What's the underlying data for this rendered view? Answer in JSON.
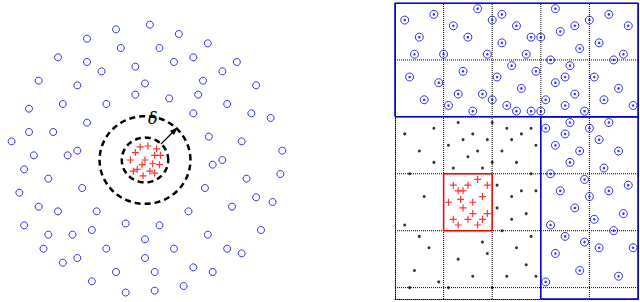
{
  "chart_data": [
    {
      "type": "scatter",
      "tick_labels": false,
      "grid": false,
      "xlim": [
        -1.5,
        1.5
      ],
      "ylim": [
        -1.5,
        1.5
      ],
      "annotations": [
        "δ"
      ],
      "circles": [
        {
          "r": 0.24,
          "color": "#000000",
          "line_style": "dashed"
        },
        {
          "r": 0.47,
          "color": "#000000",
          "line_style": "dashed"
        }
      ],
      "series": [
        {
          "color": "#0000ff",
          "marker": "circle",
          "values": [
            [
              -1.38,
              0.2
            ],
            [
              -1.3,
              -0.35
            ],
            [
              -1.2,
              0.55
            ],
            [
              -1.25,
              -0.7
            ],
            [
              -1.1,
              0.85
            ],
            [
              -1.05,
              -0.95
            ],
            [
              -0.9,
              1.1
            ],
            [
              -0.85,
              -1.1
            ],
            [
              -0.6,
              1.3
            ],
            [
              -0.55,
              -1.3
            ],
            [
              -0.3,
              1.4
            ],
            [
              -0.2,
              -1.42
            ],
            [
              0.05,
              1.45
            ],
            [
              0.1,
              -1.4
            ],
            [
              0.35,
              1.35
            ],
            [
              0.4,
              -1.35
            ],
            [
              0.65,
              1.25
            ],
            [
              0.7,
              -1.2
            ],
            [
              0.95,
              1.05
            ],
            [
              1.0,
              -1.0
            ],
            [
              1.15,
              0.8
            ],
            [
              1.2,
              -0.75
            ],
            [
              1.3,
              0.45
            ],
            [
              1.32,
              -0.45
            ],
            [
              1.42,
              0.1
            ],
            [
              1.4,
              -0.15
            ],
            [
              -0.7,
              0.1
            ],
            [
              -0.65,
              -0.3
            ],
            [
              -0.6,
              0.4
            ],
            [
              -0.5,
              -0.55
            ],
            [
              -0.4,
              0.6
            ],
            [
              -0.2,
              -0.68
            ],
            [
              -0.1,
              0.7
            ],
            [
              0.15,
              -0.7
            ],
            [
              0.25,
              0.66
            ],
            [
              0.45,
              -0.55
            ],
            [
              0.5,
              0.5
            ],
            [
              0.62,
              -0.3
            ],
            [
              0.66,
              0.25
            ],
            [
              0.7,
              -0.05
            ],
            [
              -0.95,
              0.3
            ],
            [
              -1.0,
              -0.2
            ],
            [
              -0.85,
              0.6
            ],
            [
              -0.9,
              -0.55
            ],
            [
              -0.7,
              0.8
            ],
            [
              -0.75,
              -0.8
            ],
            [
              -0.45,
              0.95
            ],
            [
              -0.4,
              -0.95
            ],
            [
              -0.1,
              1.0
            ],
            [
              0.0,
              -1.05
            ],
            [
              0.3,
              1.05
            ],
            [
              0.3,
              -0.95
            ],
            [
              0.6,
              0.85
            ],
            [
              0.65,
              -0.8
            ],
            [
              0.85,
              0.6
            ],
            [
              0.9,
              -0.5
            ],
            [
              1.0,
              0.2
            ],
            [
              1.05,
              -0.2
            ],
            [
              -1.15,
              0.05
            ],
            [
              -1.1,
              -0.5
            ],
            [
              -1.2,
              0.3
            ],
            [
              -0.6,
              1.05
            ],
            [
              -0.25,
              1.2
            ],
            [
              0.15,
              1.2
            ],
            [
              0.5,
              1.1
            ],
            [
              0.8,
              0.95
            ],
            [
              1.1,
              0.5
            ],
            [
              1.15,
              -0.4
            ],
            [
              0.85,
              -0.95
            ],
            [
              0.5,
              -1.15
            ],
            [
              0.1,
              -1.2
            ],
            [
              -0.3,
              -1.2
            ],
            [
              -0.7,
              -1.05
            ],
            [
              -1.0,
              -0.8
            ],
            [
              -1.25,
              -0.1
            ],
            [
              -0.8,
              0.05
            ],
            [
              0.8,
              0.0
            ],
            [
              0.0,
              0.82
            ],
            [
              0.0,
              -0.85
            ],
            [
              -0.55,
              -0.75
            ],
            [
              0.55,
              0.7
            ]
          ]
        },
        {
          "color": "#ff0000",
          "marker": "plus",
          "values": [
            [
              0,
              0
            ],
            [
              0.1,
              0.05
            ],
            [
              -0.1,
              0.08
            ],
            [
              0.05,
              -0.12
            ],
            [
              -0.08,
              -0.1
            ],
            [
              0.15,
              -0.05
            ],
            [
              -0.15,
              0.0
            ],
            [
              0.03,
              0.15
            ],
            [
              -0.05,
              0.14
            ],
            [
              0.12,
              0.12
            ],
            [
              -0.12,
              -0.12
            ],
            [
              0.08,
              -0.04
            ],
            [
              -0.03,
              -0.05
            ],
            [
              0.16,
              0.05
            ],
            [
              -0.02,
              -0.17
            ],
            [
              0.1,
              -0.14
            ]
          ]
        }
      ]
    },
    {
      "type": "scatter",
      "tick_labels": false,
      "grid": true,
      "xlim": [
        0,
        5
      ],
      "ylim": [
        0,
        5.2
      ],
      "xticks": [
        1,
        2,
        3,
        4
      ],
      "yticks": [
        0.2,
        1.2,
        2.2,
        3.2,
        4.2
      ],
      "boxes": [
        {
          "x": [
            0,
            5
          ],
          "y": [
            3.2,
            5.2
          ],
          "color": "#0000cc"
        },
        {
          "x": [
            3,
            5
          ],
          "y": [
            0,
            3.2
          ],
          "color": "#0000cc"
        },
        {
          "x": [
            1,
            2
          ],
          "y": [
            1.2,
            2.2
          ],
          "color": "#ff0000"
        }
      ],
      "series": [
        {
          "color": "#0000ff",
          "marker": "circled_dot",
          "values": [
            [
              0.2,
              4.9
            ],
            [
              0.5,
              4.6
            ],
            [
              0.8,
              5.0
            ],
            [
              1.0,
              4.3
            ],
            [
              1.2,
              4.8
            ],
            [
              1.4,
              4.0
            ],
            [
              1.5,
              4.6
            ],
            [
              1.7,
              5.1
            ],
            [
              1.8,
              3.6
            ],
            [
              1.9,
              4.3
            ],
            [
              2.0,
              4.9
            ],
            [
              2.1,
              3.9
            ],
            [
              2.2,
              4.5
            ],
            [
              2.3,
              3.4
            ],
            [
              2.4,
              4.1
            ],
            [
              2.5,
              4.8
            ],
            [
              2.6,
              3.7
            ],
            [
              2.7,
              4.3
            ],
            [
              2.8,
              3.3
            ],
            [
              2.9,
              4.0
            ],
            [
              3.0,
              4.6
            ],
            [
              3.1,
              3.5
            ],
            [
              3.2,
              4.2
            ],
            [
              3.3,
              3.8
            ],
            [
              3.4,
              4.7
            ],
            [
              3.5,
              3.4
            ],
            [
              3.6,
              4.1
            ],
            [
              3.7,
              3.6
            ],
            [
              3.8,
              4.4
            ],
            [
              3.9,
              3.3
            ],
            [
              4.0,
              4.9
            ],
            [
              4.1,
              3.9
            ],
            [
              4.2,
              4.5
            ],
            [
              4.3,
              3.5
            ],
            [
              4.5,
              4.2
            ],
            [
              4.6,
              3.7
            ],
            [
              4.8,
              4.8
            ],
            [
              4.9,
              3.4
            ],
            [
              0.3,
              3.9
            ],
            [
              0.6,
              3.5
            ],
            [
              0.9,
              3.8
            ],
            [
              1.1,
              3.4
            ],
            [
              0.4,
              4.3
            ],
            [
              1.6,
              3.3
            ],
            [
              2.0,
              3.5
            ],
            [
              2.5,
              3.3
            ],
            [
              3.0,
              3.3
            ],
            [
              3.5,
              3.9
            ],
            [
              4.4,
              5.0
            ],
            [
              2.2,
              5.0
            ],
            [
              3.3,
              5.1
            ],
            [
              1.3,
              3.6
            ],
            [
              2.8,
              4.6
            ],
            [
              3.7,
              4.8
            ],
            [
              4.7,
              4.3
            ],
            [
              3.1,
              3.0
            ],
            [
              3.3,
              2.7
            ],
            [
              3.2,
              2.2
            ],
            [
              3.5,
              2.9
            ],
            [
              3.6,
              2.4
            ],
            [
              3.4,
              1.9
            ],
            [
              3.8,
              2.6
            ],
            [
              3.9,
              2.1
            ],
            [
              3.7,
              1.6
            ],
            [
              3.2,
              1.3
            ],
            [
              3.5,
              1.1
            ],
            [
              4.0,
              1.8
            ],
            [
              4.2,
              2.8
            ],
            [
              4.3,
              2.3
            ],
            [
              4.1,
              1.4
            ],
            [
              4.4,
              1.9
            ],
            [
              4.6,
              2.6
            ],
            [
              4.5,
              1.2
            ],
            [
              4.8,
              2.0
            ],
            [
              4.7,
              1.5
            ],
            [
              3.3,
              0.8
            ],
            [
              3.8,
              0.5
            ],
            [
              4.2,
              0.9
            ],
            [
              4.6,
              0.4
            ],
            [
              3.1,
              0.3
            ],
            [
              4.9,
              0.9
            ],
            [
              3.6,
              3.1
            ],
            [
              4.0,
              3.0
            ],
            [
              4.4,
              3.1
            ],
            [
              3.9,
              1.0
            ]
          ]
        },
        {
          "color": "#000000",
          "marker": "dot",
          "values": [
            [
              0.2,
              2.9
            ],
            [
              0.5,
              2.6
            ],
            [
              0.8,
              3.0
            ],
            [
              1.1,
              2.7
            ],
            [
              1.3,
              3.1
            ],
            [
              1.5,
              2.5
            ],
            [
              1.6,
              2.9
            ],
            [
              1.8,
              2.3
            ],
            [
              1.9,
              2.8
            ],
            [
              2.0,
              3.1
            ],
            [
              2.1,
              2.0
            ],
            [
              2.2,
              2.6
            ],
            [
              2.3,
              3.0
            ],
            [
              2.4,
              1.8
            ],
            [
              2.5,
              2.4
            ],
            [
              2.6,
              2.9
            ],
            [
              2.7,
              1.5
            ],
            [
              2.8,
              2.2
            ],
            [
              2.9,
              2.7
            ],
            [
              2.2,
              1.2
            ],
            [
              2.5,
              0.9
            ],
            [
              2.7,
              0.6
            ],
            [
              2.3,
              0.4
            ],
            [
              2.8,
              1.1
            ],
            [
              2.1,
              1.6
            ],
            [
              2.6,
              1.9
            ],
            [
              2.9,
              1.9
            ],
            [
              2.4,
              2.8
            ],
            [
              1.7,
              2.6
            ],
            [
              2.0,
              2.4
            ],
            [
              0.3,
              2.2
            ],
            [
              0.6,
              1.8
            ],
            [
              0.2,
              1.3
            ],
            [
              0.7,
              0.9
            ],
            [
              0.4,
              0.5
            ],
            [
              0.9,
              0.3
            ],
            [
              1.3,
              0.7
            ],
            [
              1.6,
              0.4
            ],
            [
              1.9,
              0.8
            ],
            [
              2.0,
              0.2
            ],
            [
              0.8,
              2.4
            ],
            [
              1.2,
              2.3
            ],
            [
              0.5,
              1.1
            ],
            [
              0.3,
              0.2
            ],
            [
              1.1,
              0.2
            ],
            [
              1.8,
              1.0
            ],
            [
              2.9,
              0.4
            ],
            [
              2.4,
              1.4
            ],
            [
              2.8,
              3.0
            ],
            [
              1.4,
              2.8
            ]
          ]
        },
        {
          "color": "#ff0000",
          "marker": "plus",
          "values": [
            [
              1.2,
              1.4
            ],
            [
              1.3,
              1.9
            ],
            [
              1.4,
              1.6
            ],
            [
              1.5,
              2.0
            ],
            [
              1.5,
              1.4
            ],
            [
              1.6,
              1.7
            ],
            [
              1.7,
              1.3
            ],
            [
              1.7,
              2.1
            ],
            [
              1.8,
              1.8
            ],
            [
              1.9,
              1.5
            ],
            [
              1.3,
              1.3
            ],
            [
              1.1,
              1.7
            ],
            [
              1.2,
              2.0
            ],
            [
              1.6,
              1.5
            ],
            [
              1.4,
              1.9
            ],
            [
              1.8,
              1.4
            ],
            [
              1.9,
              2.0
            ],
            [
              1.35,
              1.75
            ]
          ]
        }
      ]
    }
  ]
}
